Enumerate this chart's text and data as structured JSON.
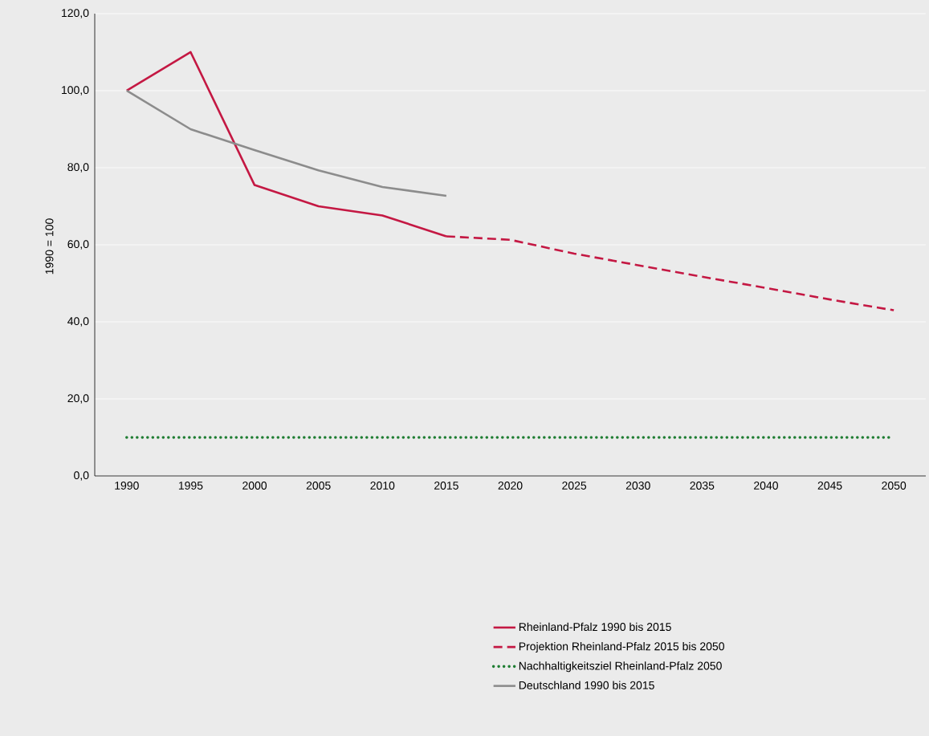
{
  "chart_data": {
    "type": "line",
    "ylabel": "1990 = 100",
    "categories": [
      "1990",
      "1995",
      "2000",
      "2005",
      "2010",
      "2015",
      "2020",
      "2025",
      "2030",
      "2035",
      "2040",
      "2045",
      "2050"
    ],
    "series": [
      {
        "name": "Rheinland-Pfalz 1990 bis 2015",
        "color": "#c41843",
        "line_style": "solid",
        "values": [
          100,
          110,
          75.5,
          70,
          67.6,
          62.2,
          null,
          null,
          null,
          null,
          null,
          null,
          null
        ]
      },
      {
        "name": "Projektion Rheinland-Pfalz 2015 bis 2050",
        "color": "#c41843",
        "line_style": "dashed",
        "values": [
          null,
          null,
          null,
          null,
          null,
          62.2,
          61.3,
          57.7,
          54.7,
          51.7,
          48.8,
          45.8,
          43.0
        ]
      },
      {
        "name": "Nachhaltigkeitsziel Rheinland-Pfalz 2050",
        "color": "#1e7d32",
        "line_style": "dotted",
        "values": [
          10,
          10,
          10,
          10,
          10,
          10,
          10,
          10,
          10,
          10,
          10,
          10,
          10
        ]
      },
      {
        "name": "Deutschland 1990 bis 2015",
        "color": "#8c8c8c",
        "line_style": "solid",
        "values": [
          100,
          90,
          84.6,
          79.3,
          75,
          72.7,
          null,
          null,
          null,
          null,
          null,
          null,
          null
        ]
      }
    ],
    "ylim": [
      0,
      120
    ],
    "yticks": [
      {
        "value": 0,
        "label": "0,0"
      },
      {
        "value": 20,
        "label": "20,0"
      },
      {
        "value": 40,
        "label": "40,0"
      },
      {
        "value": 60,
        "label": "60,0"
      },
      {
        "value": 80,
        "label": "80,0"
      },
      {
        "value": 100,
        "label": "100,0"
      },
      {
        "value": 120,
        "label": "120,0"
      }
    ],
    "grid": "y",
    "legend": "bottom"
  }
}
